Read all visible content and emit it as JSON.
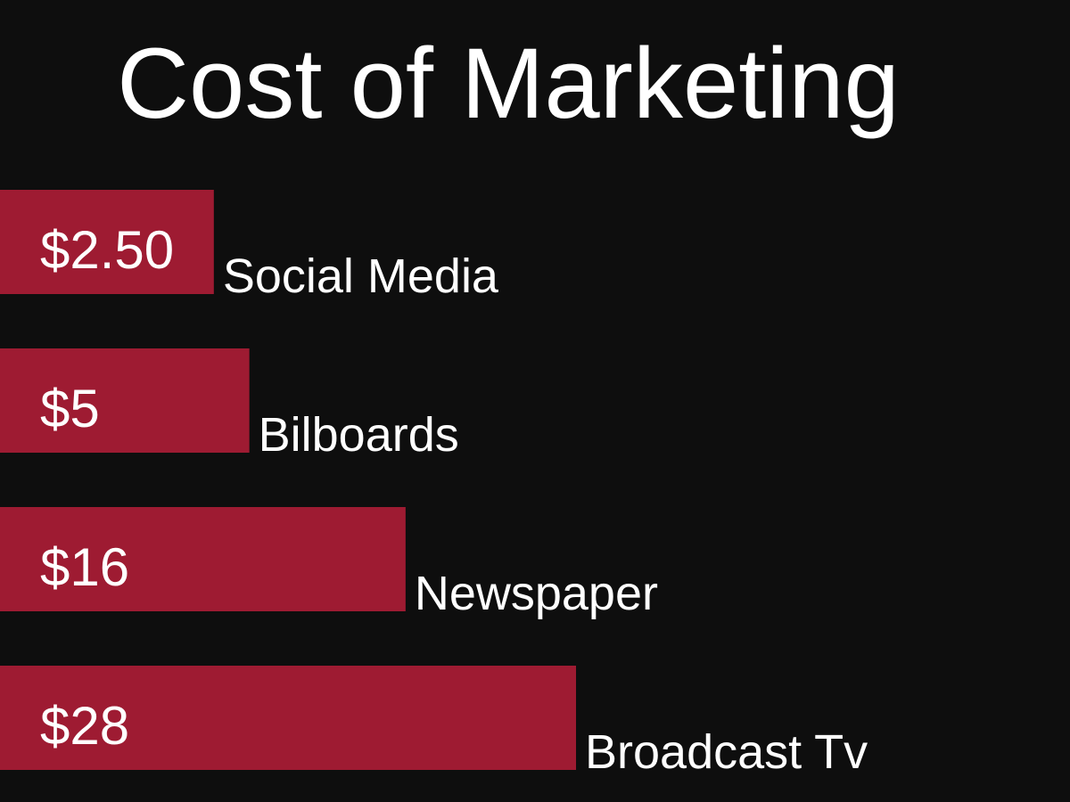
{
  "chart_data": {
    "type": "bar",
    "orientation": "horizontal",
    "title": "Cost of Marketing",
    "categories": [
      "Social Media",
      "Bilboards",
      "Newspaper",
      "Broadcast Tv"
    ],
    "values": [
      2.5,
      5,
      16,
      28
    ],
    "value_labels": [
      "$2.50",
      "$5",
      "$16",
      "$28"
    ],
    "color": "#9e1b32"
  }
}
